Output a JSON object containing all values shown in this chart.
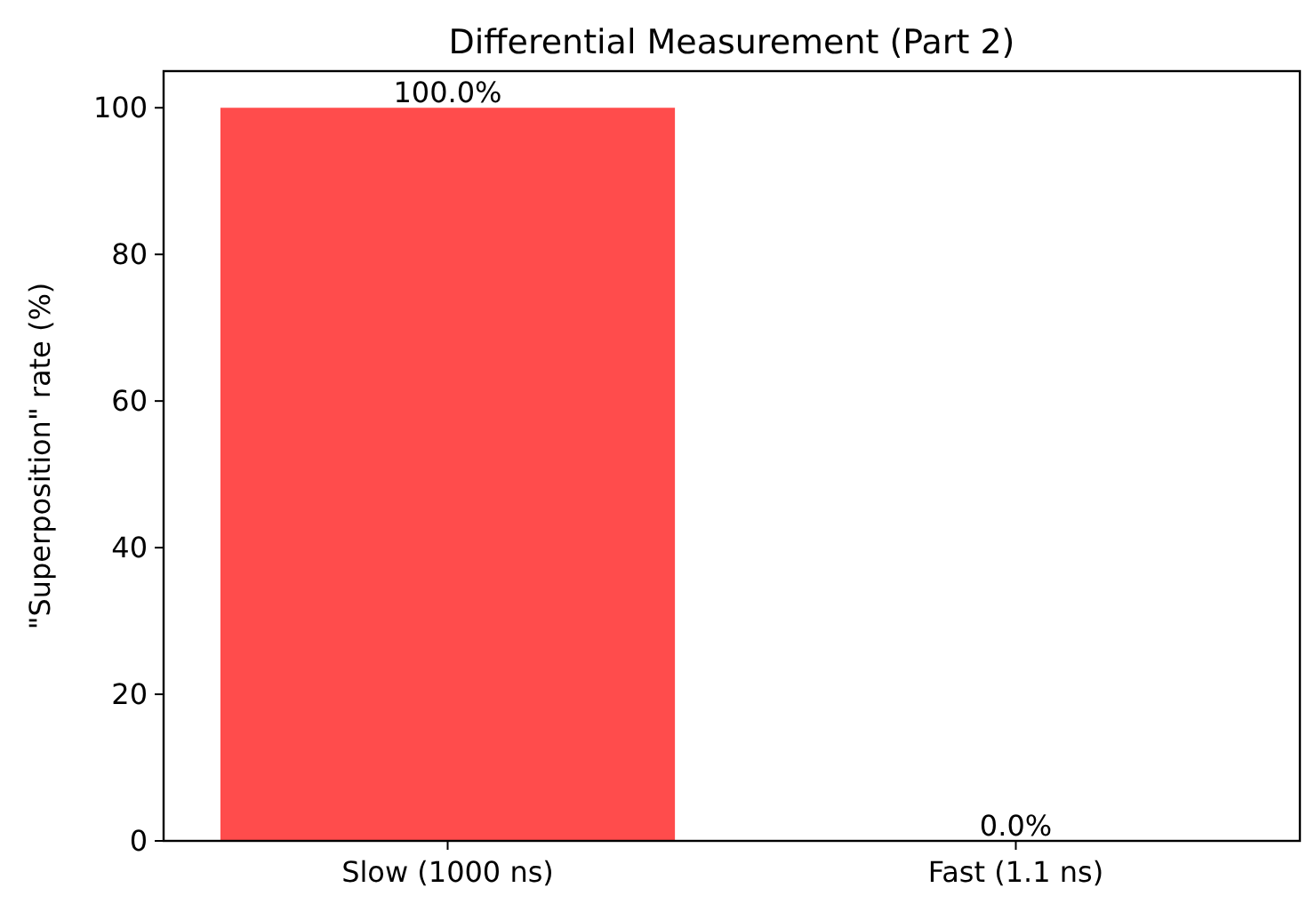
{
  "chart_data": {
    "type": "bar",
    "title": "Differential Measurement (Part 2)",
    "ylabel": "\"Superposition\" rate (%)",
    "categories": [
      "Slow (1000 ns)",
      "Fast (1.1 ns)"
    ],
    "values": [
      100,
      0
    ],
    "color": "#ff4c4c",
    "value_labels": [
      "100.0%",
      "0.0%"
    ],
    "ylim": [
      0,
      105
    ],
    "yticks": [
      0,
      20,
      40,
      60,
      80,
      100
    ]
  }
}
